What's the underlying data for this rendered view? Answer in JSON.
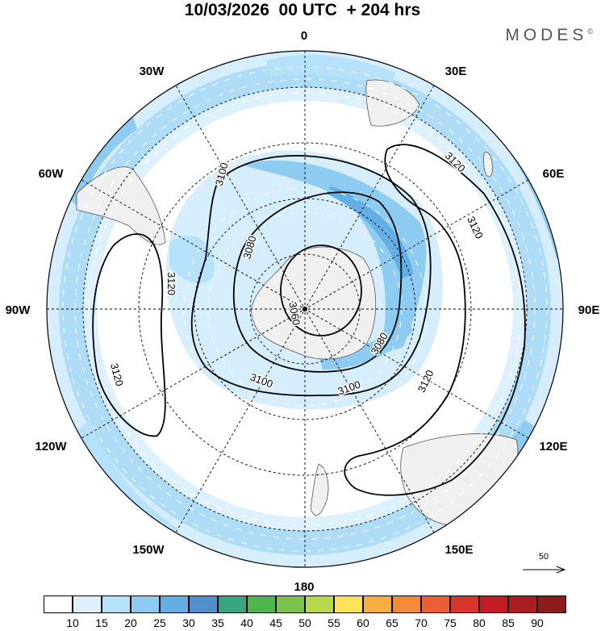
{
  "header": {
    "title": "10/03/2026  00 UTC  + 204 hrs",
    "brand": "MODES",
    "brand_mark": "©"
  },
  "map": {
    "projection": "south-polar-stereographic",
    "meridian_labels": [
      {
        "lon": 0,
        "text": "0"
      },
      {
        "lon": 30,
        "text": "30E"
      },
      {
        "lon": 60,
        "text": "60E"
      },
      {
        "lon": 90,
        "text": "90E"
      },
      {
        "lon": 120,
        "text": "120E"
      },
      {
        "lon": 150,
        "text": "150E"
      },
      {
        "lon": 180,
        "text": "180"
      },
      {
        "lon": -150,
        "text": "150W"
      },
      {
        "lon": -120,
        "text": "120W"
      },
      {
        "lon": -90,
        "text": "90W"
      },
      {
        "lon": -60,
        "text": "60W"
      },
      {
        "lon": -30,
        "text": "30W"
      }
    ],
    "contour_labels": [
      "3060",
      "3080",
      "3080",
      "3100",
      "3100",
      "3100",
      "3120",
      "3120",
      "3120",
      "3120",
      "3120"
    ],
    "contour_levels": [
      3060,
      3080,
      3100,
      3120
    ],
    "wind_reference": "50",
    "colors": {
      "land": "#f0f0f0",
      "contour": "#000000",
      "arrow": "#ffffff"
    }
  },
  "colorbar": {
    "labels": [
      "10",
      "15",
      "20",
      "25",
      "30",
      "35",
      "40",
      "45",
      "50",
      "55",
      "60",
      "65",
      "70",
      "75",
      "80",
      "85",
      "90"
    ],
    "colors": [
      "#ffffff",
      "#ddf1fd",
      "#b6e1fa",
      "#8ecbf0",
      "#62aee5",
      "#4f8fcc",
      "#3aa583",
      "#4fb64f",
      "#7ac44d",
      "#b9d84e",
      "#fde25c",
      "#f9ae45",
      "#f28a38",
      "#ea5f33",
      "#d8362c",
      "#c21d25",
      "#a81d20",
      "#8c1b1b"
    ]
  }
}
